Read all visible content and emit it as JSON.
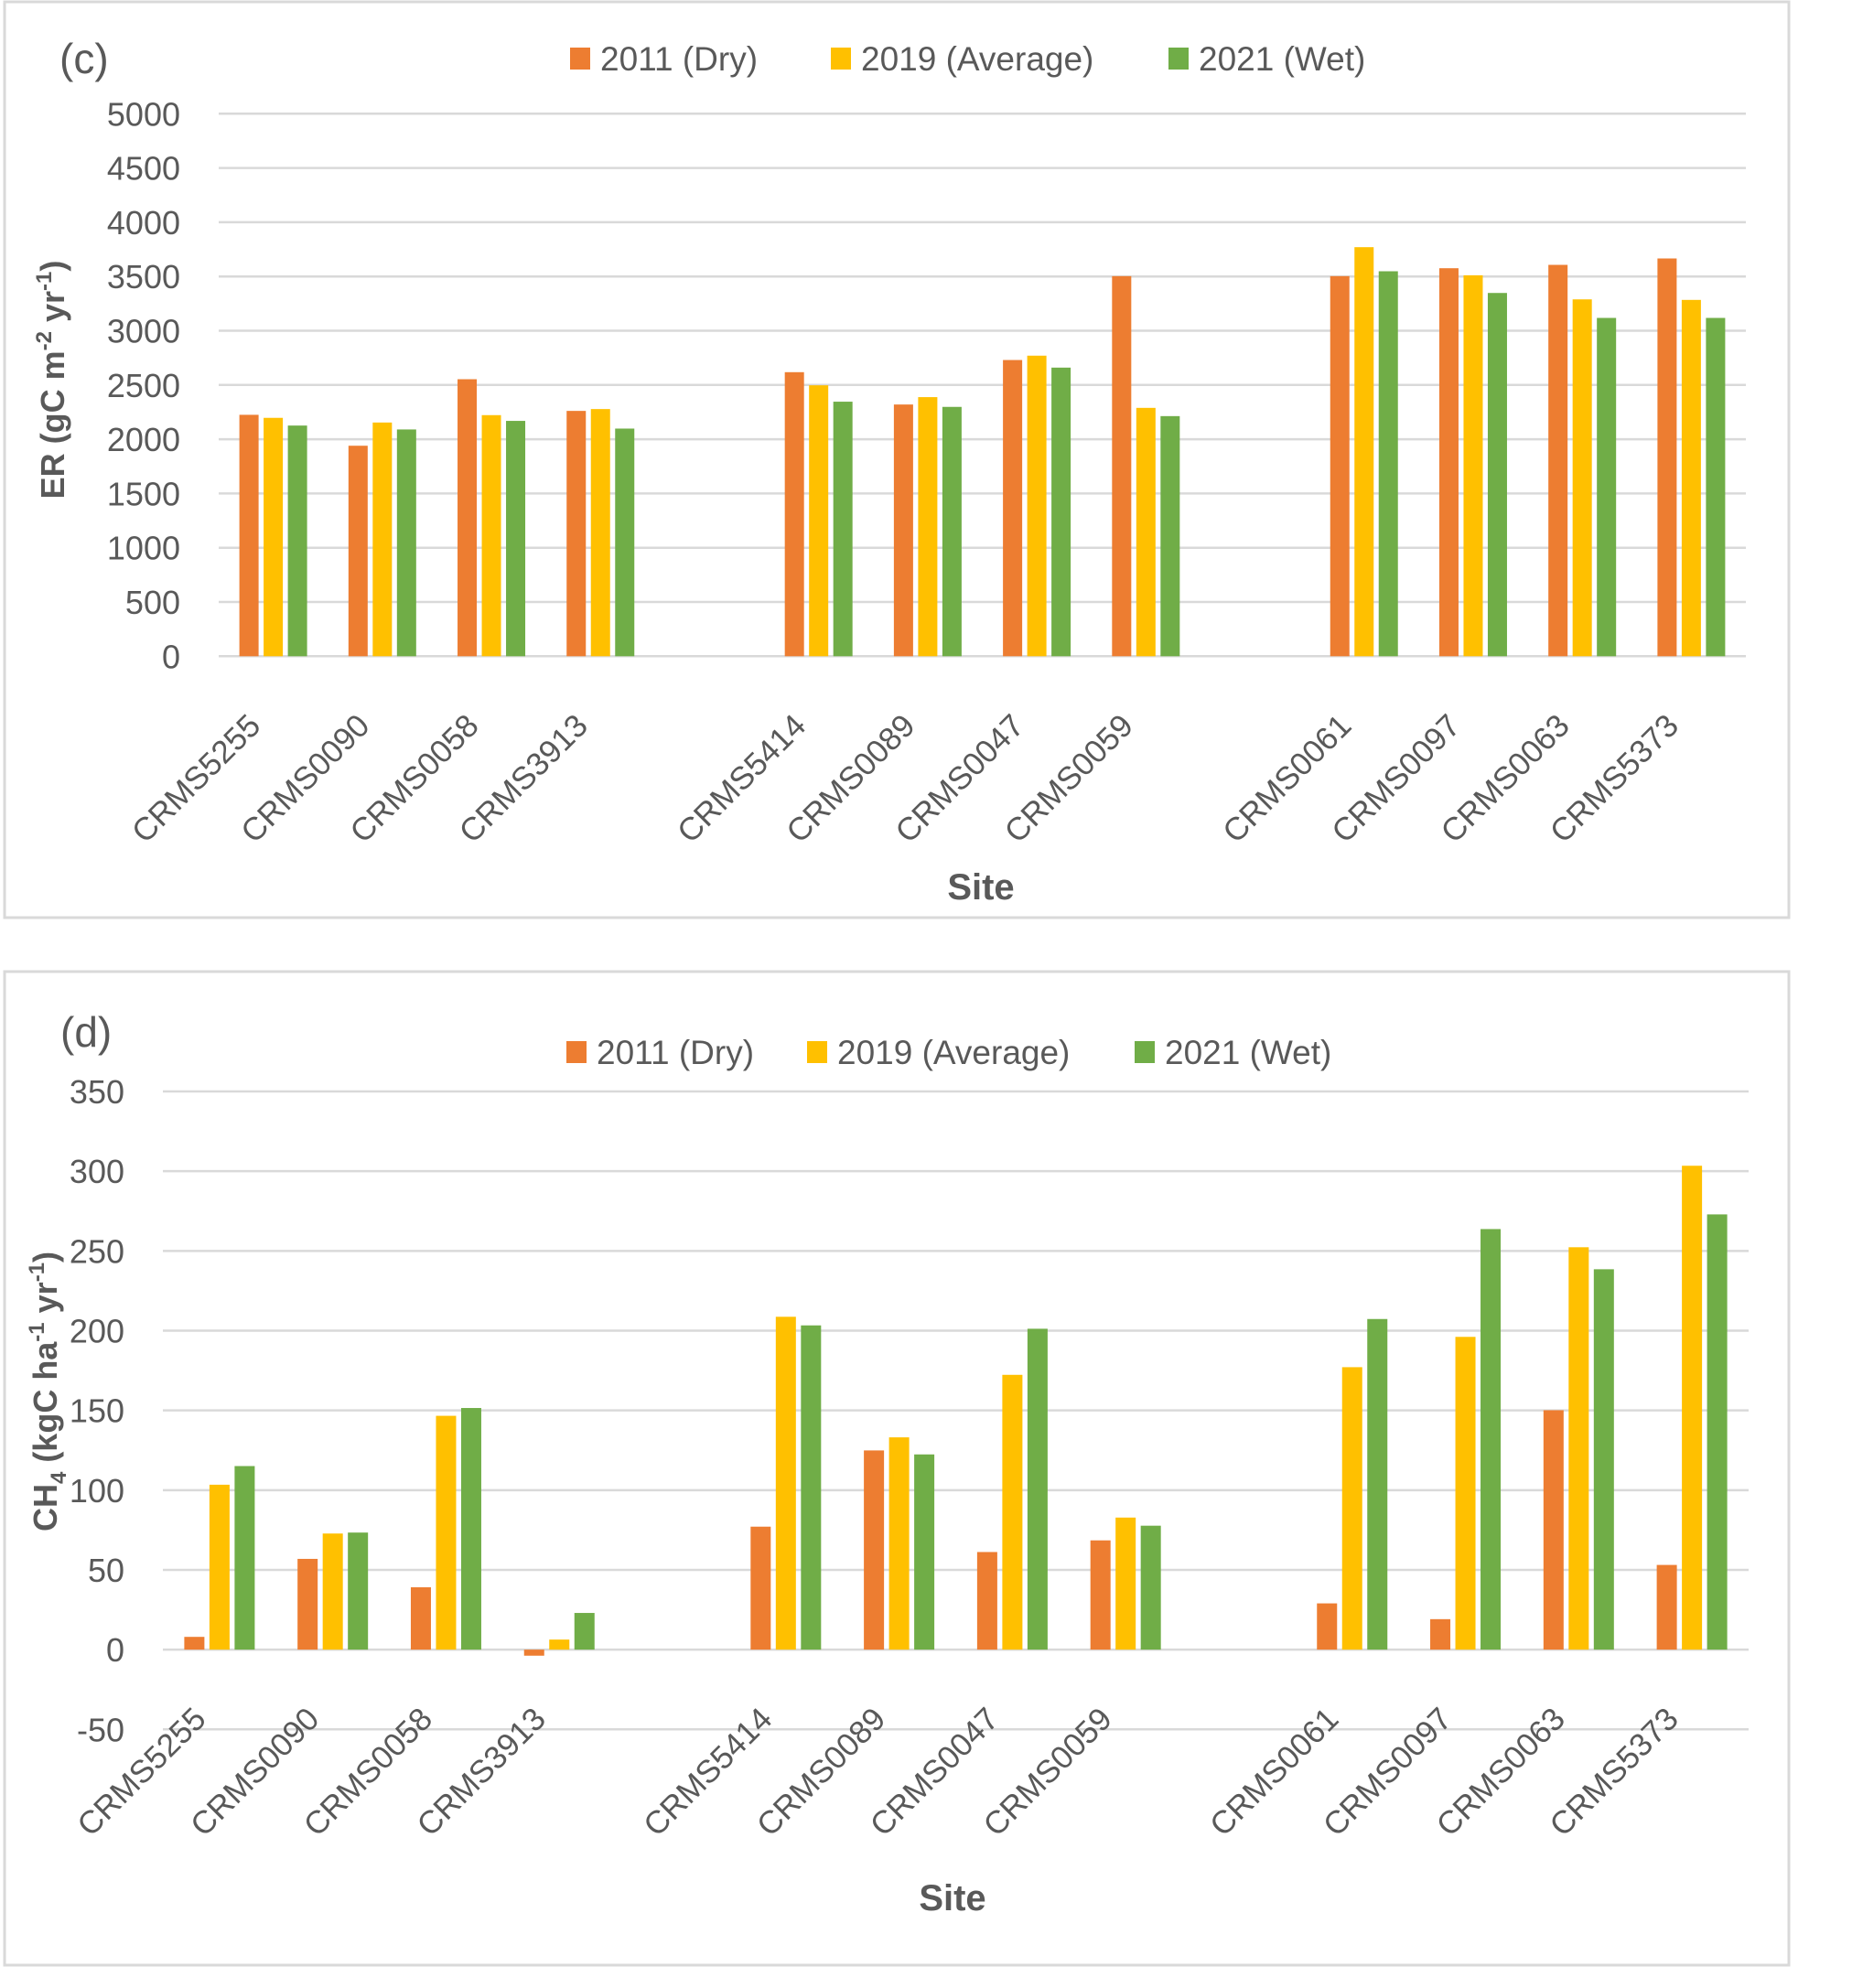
{
  "colors": {
    "2011 (Dry)": "#ED7D31",
    "2019 (Average)": "#FFC000",
    "2021 (Wet)": "#70AD47",
    "grid": "#D9D9D9",
    "text": "#595959"
  },
  "chart_data": [
    {
      "type": "bar",
      "panel_label": "(c)",
      "title": "",
      "xlabel": "Site",
      "ylabel": "ER (gC m-2 yr-1)",
      "ylabel_parts": {
        "base": "ER (gC m",
        "sup1": "-2",
        "mid": " yr",
        "sup2": "-1",
        "end": ")"
      },
      "ylim": [
        0,
        5000
      ],
      "yticks": [
        0,
        500,
        1000,
        1500,
        2000,
        2500,
        3000,
        3500,
        4000,
        4500,
        5000
      ],
      "grid": true,
      "legend_position": "top-center",
      "categories": [
        "CRMS5255",
        "CRMS0090",
        "CRMS0058",
        "CRMS3913",
        "",
        "CRMS5414",
        "CRMS0089",
        "CRMS0047",
        "CRMS0059",
        "",
        "CRMS0061",
        "CRMS0097",
        "CRMS0063",
        "CRMS5373"
      ],
      "series": [
        {
          "name": "2011 (Dry)",
          "values": [
            2225,
            1940,
            2553,
            2261,
            null,
            2618,
            2320,
            2730,
            3503,
            null,
            3503,
            3576,
            3607,
            3666
          ]
        },
        {
          "name": "2019 (Average)",
          "values": [
            2197,
            2154,
            2222,
            2278,
            null,
            2497,
            2388,
            2770,
            2289,
            null,
            3770,
            3511,
            3289,
            3284
          ]
        },
        {
          "name": "2021 (Wet)",
          "values": [
            2126,
            2090,
            2169,
            2098,
            null,
            2346,
            2298,
            2660,
            2213,
            null,
            3548,
            3348,
            3118,
            3118
          ]
        }
      ]
    },
    {
      "type": "bar",
      "panel_label": "(d)",
      "title": "",
      "xlabel": "Site",
      "ylabel": "CH4 (kgC ha-1 yr-1)",
      "ylabel_parts": {
        "base": "CH",
        "sub": "4",
        "pre": " (kgC ha",
        "sup1": "-1",
        "mid": " yr",
        "sup2": "-1",
        "end": ")"
      },
      "ylim": [
        -50,
        350
      ],
      "yticks": [
        -50,
        0,
        50,
        100,
        150,
        200,
        250,
        300,
        350
      ],
      "grid": true,
      "legend_position": "top-center",
      "categories": [
        "CRMS5255",
        "CRMS0090",
        "CRMS0058",
        "CRMS3913",
        "",
        "CRMS5414",
        "CRMS0089",
        "CRMS0047",
        "CRMS0059",
        "",
        "CRMS0061",
        "CRMS0097",
        "CRMS0063",
        "CRMS5373"
      ],
      "series": [
        {
          "name": "2011 (Dry)",
          "values": [
            8.0,
            56.9,
            39.1,
            -3.8,
            null,
            77.1,
            124.9,
            61.2,
            68.5,
            null,
            29.0,
            19.1,
            150.1,
            53.1
          ]
        },
        {
          "name": "2019 (Average)",
          "values": [
            103.4,
            72.8,
            146.6,
            6.3,
            null,
            208.7,
            133.1,
            172.3,
            82.8,
            null,
            177.1,
            196.1,
            252.3,
            303.4
          ]
        },
        {
          "name": "2021 (Wet)",
          "values": [
            115.1,
            73.4,
            151.5,
            23.0,
            null,
            203.3,
            122.4,
            201.2,
            77.7,
            null,
            207.3,
            263.7,
            238.5,
            272.9
          ]
        }
      ]
    }
  ]
}
